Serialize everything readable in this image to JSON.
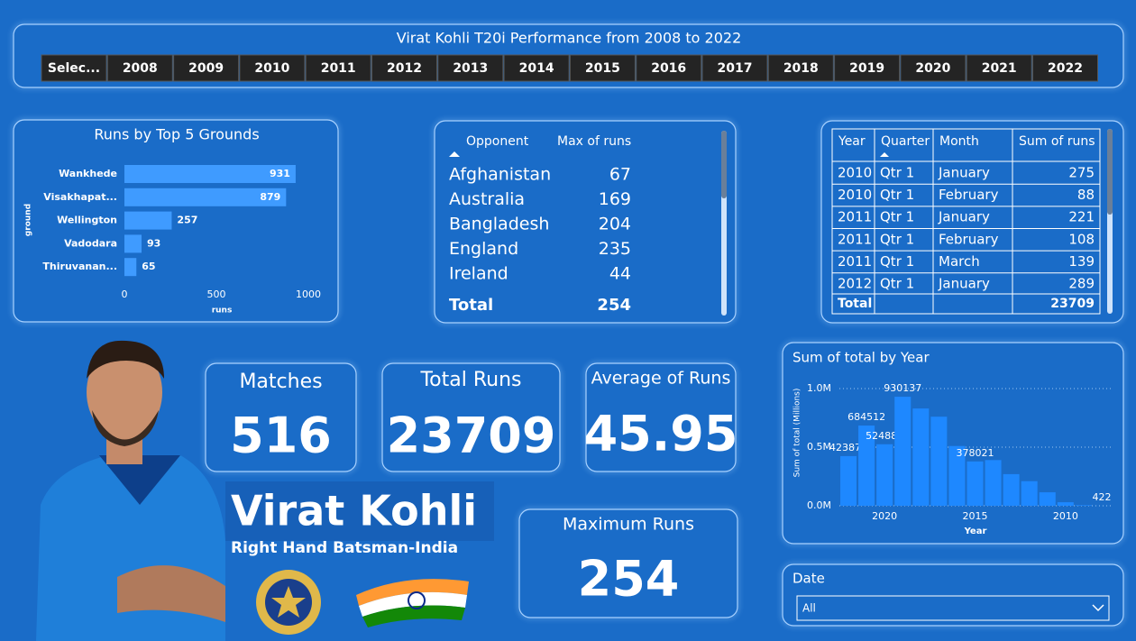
{
  "header": {
    "title": "Virat Kohli T20i Performance from 2008 to 2022",
    "year_buttons": [
      "Selec...",
      "2008",
      "2009",
      "2010",
      "2011",
      "2012",
      "2013",
      "2014",
      "2015",
      "2016",
      "2017",
      "2018",
      "2019",
      "2020",
      "2021",
      "2022"
    ]
  },
  "chart_data": [
    {
      "type": "bar",
      "orientation": "horizontal",
      "title": "Runs by Top 5 Grounds",
      "y_label": "ground",
      "x_label": "runs",
      "categories": [
        "Wankhede",
        "Visakhapat...",
        "Wellington",
        "Vadodara",
        "Thiruvanan..."
      ],
      "values": [
        931,
        879,
        257,
        93,
        65
      ],
      "color": "#3f9bff",
      "xlim": [
        0,
        1000
      ],
      "xticks": [
        0,
        500,
        1000
      ]
    },
    {
      "type": "bar",
      "title": "Sum of total by Year",
      "y_label": "Sum of total (Millions)",
      "x_label": "Year",
      "x": [
        2022,
        2021,
        2020,
        2019,
        2018,
        2017,
        2016,
        2015,
        2014,
        2013,
        2012,
        2011,
        2010,
        2009,
        2008
      ],
      "values": [
        423874,
        684512,
        524881,
        930137,
        830000,
        760000,
        510000,
        378021,
        390000,
        270000,
        210000,
        115000,
        30000,
        5000,
        422
      ],
      "value_labels": [
        "423874",
        "684512",
        "524881",
        "930137",
        null,
        null,
        null,
        "378021",
        null,
        null,
        null,
        null,
        null,
        null,
        "422"
      ],
      "color": "#1e88ff",
      "xlim": [
        2022.5,
        2007.5
      ],
      "xticks": [
        2020,
        2015,
        2010
      ],
      "ylim": [
        0,
        1000000
      ],
      "yticks": [
        {
          "value": 0,
          "label": "0.0M"
        },
        {
          "value": 500000,
          "label": "0.5M"
        },
        {
          "value": 1000000,
          "label": "1.0M"
        }
      ],
      "grid": true
    }
  ],
  "opponent_table": {
    "columns": [
      "Opponent",
      "Max of runs"
    ],
    "rows": [
      [
        "Afghanistan",
        67
      ],
      [
        "Australia",
        169
      ],
      [
        "Bangladesh",
        204
      ],
      [
        "England",
        235
      ],
      [
        "Ireland",
        44
      ]
    ],
    "total": [
      "Total",
      254
    ]
  },
  "year_table": {
    "columns": [
      "Year",
      "Quarter",
      "Month",
      "Sum of runs"
    ],
    "rows": [
      [
        2010,
        "Qtr 1",
        "January",
        275
      ],
      [
        2010,
        "Qtr 1",
        "February",
        88
      ],
      [
        2011,
        "Qtr 1",
        "January",
        221
      ],
      [
        2011,
        "Qtr 1",
        "February",
        108
      ],
      [
        2011,
        "Qtr 1",
        "March",
        139
      ],
      [
        2012,
        "Qtr 1",
        "January",
        289
      ]
    ],
    "total": [
      "Total",
      23709
    ]
  },
  "cards": [
    {
      "label": "Matches",
      "value": 516
    },
    {
      "label": "Total Runs",
      "value": 23709
    },
    {
      "label": "Average of Runs",
      "value": 45.95
    },
    {
      "label": "Maximum Runs",
      "value": 254
    }
  ],
  "profile": {
    "name": "Virat Kohli",
    "role": "Right Hand Batsman-India"
  },
  "date_slicer": {
    "title": "Date",
    "value": "All"
  }
}
